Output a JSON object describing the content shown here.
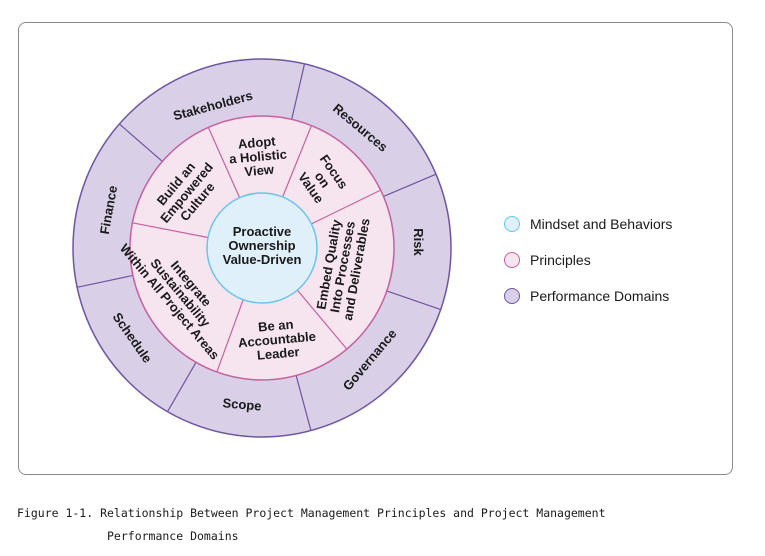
{
  "diagram": {
    "center": {
      "lines": [
        "Proactive",
        "Ownership",
        "Value-Driven"
      ]
    },
    "principles": [
      {
        "lines": [
          "Build an",
          "Empowered",
          "Culture"
        ]
      },
      {
        "lines": [
          "Adopt",
          "a Holistic",
          "View"
        ]
      },
      {
        "lines": [
          "Focus",
          "on",
          "Value"
        ]
      },
      {
        "lines": [
          "Embed Quality",
          "Into Processes",
          "and Deliverables"
        ]
      },
      {
        "lines": [
          "Be an",
          "Accountable",
          "Leader"
        ]
      },
      {
        "lines": [
          "Integrate",
          "Sustainability",
          "Within All Project Areas"
        ]
      }
    ],
    "performance_domains": [
      "Stakeholders",
      "Resources",
      "Risk",
      "Governance",
      "Scope",
      "Schedule",
      "Finance"
    ],
    "colors": {
      "mindset_fill": "#dff0fa",
      "mindset_stroke": "#6cc3ec",
      "principles_fill": "#f6e5ef",
      "principles_stroke": "#c4629f",
      "domains_fill": "#d9d0e8",
      "domains_stroke": "#6e55a0"
    }
  },
  "legend": [
    {
      "label": "Mindset and Behaviors"
    },
    {
      "label": "Principles"
    },
    {
      "label": "Performance Domains"
    }
  ],
  "caption": {
    "line1": "Figure 1-1. Relationship Between Project Management Principles and Project Management",
    "line2": "Performance Domains"
  }
}
